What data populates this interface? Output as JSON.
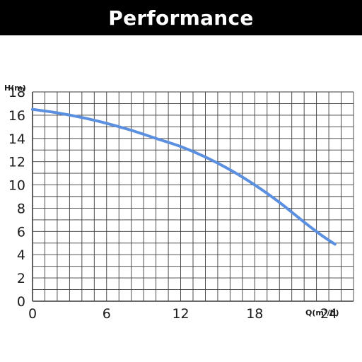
{
  "header": {
    "title": "Performance"
  },
  "colors": {
    "curve": "#5b8fe0",
    "grid": "#3a3a3a",
    "banner": "#000000"
  },
  "chart_data": {
    "type": "line",
    "title": "Performance",
    "xlabel": "Q(m³/h)",
    "ylabel": "H(m)",
    "xlim": [
      0,
      26
    ],
    "ylim": [
      0,
      18
    ],
    "x_ticks": [
      0,
      6,
      12,
      18,
      24
    ],
    "y_ticks": [
      0,
      2,
      4,
      6,
      8,
      10,
      12,
      14,
      16,
      18
    ],
    "x_tick_labels": [
      "0",
      "6",
      "12",
      "18",
      "24"
    ],
    "y_tick_labels": [
      "0",
      "2",
      "4",
      "6",
      "8",
      "10",
      "12",
      "14",
      "16",
      "18"
    ],
    "grid": true,
    "series": [
      {
        "x": [
          0,
          2,
          4,
          6,
          8,
          10,
          12,
          14,
          16,
          18,
          20,
          22,
          23.5,
          24.5
        ],
        "y": [
          16.5,
          16.2,
          15.8,
          15.3,
          14.7,
          14.0,
          13.3,
          12.4,
          11.3,
          10.0,
          8.5,
          6.8,
          5.6,
          4.9
        ]
      }
    ]
  }
}
